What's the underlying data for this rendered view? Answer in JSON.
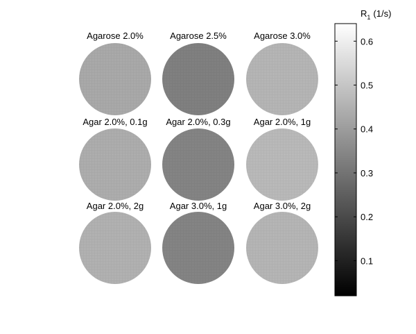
{
  "colorbar": {
    "label": "R",
    "label_sub": "1",
    "label_unit": "(1/s)",
    "range": [
      0.02,
      0.64
    ],
    "ticks": [
      "0.6",
      "0.5",
      "0.4",
      "0.3",
      "0.2",
      "0.1"
    ],
    "tick_values": [
      0.6,
      0.5,
      0.4,
      0.3,
      0.2,
      0.1
    ],
    "colormap": "gray"
  },
  "samples": [
    {
      "label": "Agarose 2.0%",
      "r1": 0.43,
      "row": 0,
      "col": 0
    },
    {
      "label": "Agarose 2.5%",
      "r1": 0.33,
      "row": 0,
      "col": 1
    },
    {
      "label": "Agarose 3.0%",
      "r1": 0.46,
      "row": 0,
      "col": 2
    },
    {
      "label": "Agar 2.0%, 0.1g",
      "r1": 0.44,
      "row": 1,
      "col": 0
    },
    {
      "label": "Agar 2.0%, 0.3g",
      "r1": 0.34,
      "row": 1,
      "col": 1
    },
    {
      "label": "Agar 2.0%, 1g",
      "r1": 0.47,
      "row": 1,
      "col": 2
    },
    {
      "label": "Agar 2.0%, 2g",
      "r1": 0.45,
      "row": 2,
      "col": 0
    },
    {
      "label": "Agar 3.0%, 1g",
      "r1": 0.34,
      "row": 2,
      "col": 1
    },
    {
      "label": "Agar 3.0%, 2g",
      "r1": 0.46,
      "row": 2,
      "col": 2
    }
  ]
}
